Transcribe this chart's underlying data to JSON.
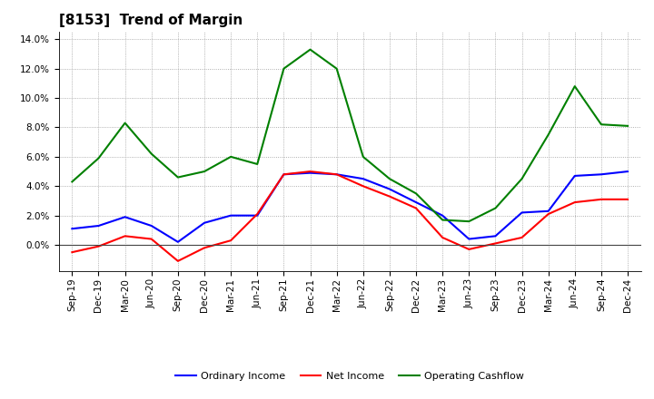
{
  "title": "[8153]  Trend of Margin",
  "x_labels": [
    "Sep-19",
    "Dec-19",
    "Mar-20",
    "Jun-20",
    "Sep-20",
    "Dec-20",
    "Mar-21",
    "Jun-21",
    "Sep-21",
    "Dec-21",
    "Mar-22",
    "Jun-22",
    "Sep-22",
    "Dec-22",
    "Mar-23",
    "Jun-23",
    "Sep-23",
    "Dec-23",
    "Mar-24",
    "Jun-24",
    "Sep-24",
    "Dec-24"
  ],
  "ordinary_income": [
    1.1,
    1.3,
    1.9,
    1.3,
    0.2,
    1.5,
    2.0,
    2.0,
    4.8,
    4.9,
    4.8,
    4.5,
    3.8,
    2.9,
    2.0,
    0.4,
    0.6,
    2.2,
    2.3,
    4.7,
    4.8,
    5.0
  ],
  "net_income": [
    -0.5,
    -0.1,
    0.6,
    0.4,
    -1.1,
    -0.2,
    0.3,
    2.1,
    4.8,
    5.0,
    4.8,
    4.0,
    3.3,
    2.5,
    0.5,
    -0.3,
    0.1,
    0.5,
    2.1,
    2.9,
    3.1,
    3.1
  ],
  "operating_cashflow": [
    4.3,
    5.9,
    8.3,
    6.2,
    4.6,
    5.0,
    6.0,
    5.5,
    12.0,
    13.3,
    12.0,
    6.0,
    4.5,
    3.5,
    1.7,
    1.6,
    2.5,
    4.5,
    7.5,
    10.8,
    8.2,
    8.1
  ],
  "ordinary_income_color": "#0000ff",
  "net_income_color": "#ff0000",
  "operating_cashflow_color": "#008000",
  "ylim": [
    -1.8,
    14.5
  ],
  "yticks": [
    0.0,
    2.0,
    4.0,
    6.0,
    8.0,
    10.0,
    12.0,
    14.0
  ],
  "background_color": "#ffffff",
  "grid_color": "#999999",
  "title_fontsize": 11,
  "legend_fontsize": 8,
  "tick_fontsize": 7.5,
  "linewidth": 1.5
}
